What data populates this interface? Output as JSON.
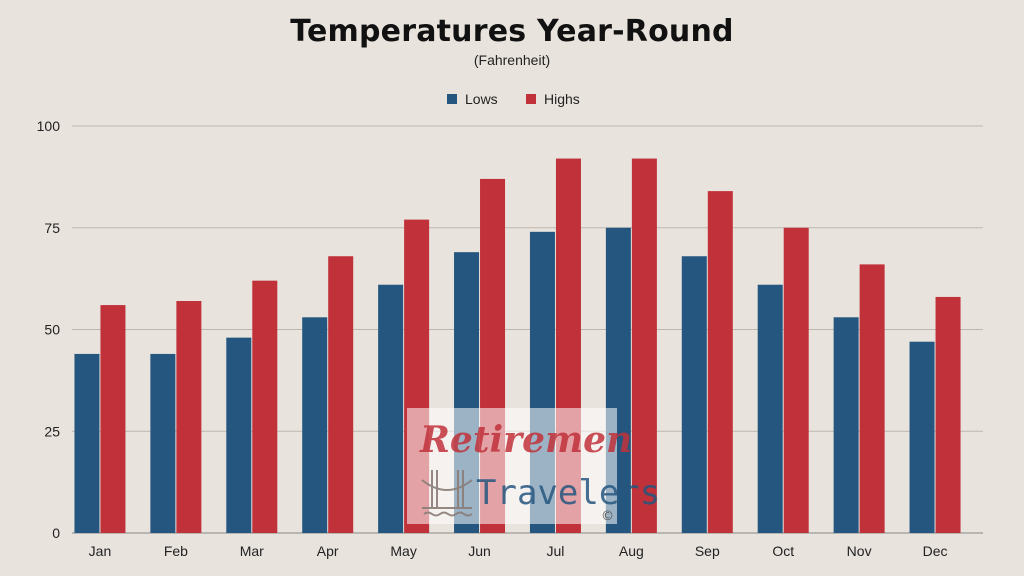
{
  "chart_data": {
    "type": "bar",
    "title": "Temperatures Year-Round",
    "subtitle": "(Fahrenheit)",
    "categories": [
      "Jan",
      "Feb",
      "Mar",
      "Apr",
      "May",
      "Jun",
      "Jul",
      "Aug",
      "Sep",
      "Oct",
      "Nov",
      "Dec"
    ],
    "series": [
      {
        "name": "Lows",
        "color": "#25567f",
        "values": [
          44,
          44,
          48,
          53,
          61,
          69,
          74,
          75,
          68,
          61,
          53,
          47
        ]
      },
      {
        "name": "Highs",
        "color": "#c1313a",
        "values": [
          56,
          57,
          62,
          68,
          77,
          87,
          92,
          92,
          84,
          75,
          66,
          58
        ]
      }
    ],
    "ylim": [
      0,
      100
    ],
    "yticks": [
      0,
      25,
      50,
      75,
      100
    ],
    "grid": true,
    "legend_position": "top-center"
  },
  "watermark": {
    "line1": "Retirement",
    "line2": "Travelers",
    "copyright": "©",
    "icon": "golden-gate-bridge-icon"
  }
}
